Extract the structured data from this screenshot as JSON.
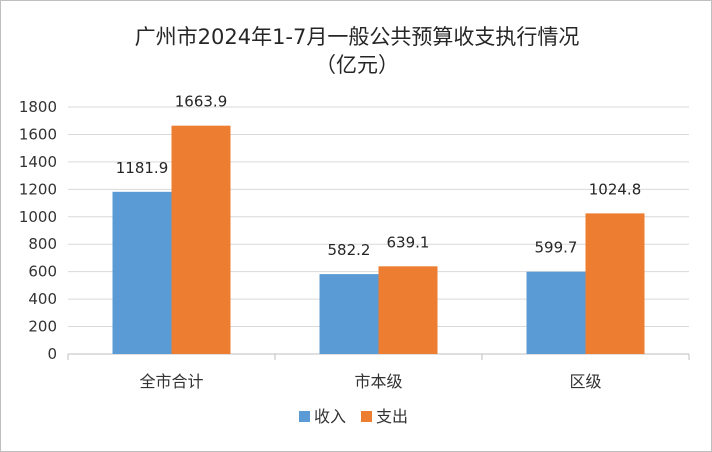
{
  "chart_data": {
    "type": "bar",
    "title": "广州市2024年1-7月一般公共预算收支执行情况",
    "subtitle": "（亿元）",
    "categories": [
      "全市合计",
      "市本级",
      "区级"
    ],
    "series": [
      {
        "name": "收入",
        "values": [
          1181.9,
          582.2,
          599.7
        ],
        "labels": [
          "1181.9",
          "582.2",
          "599.7"
        ],
        "color": "#5b9bd5"
      },
      {
        "name": "支出",
        "values": [
          1663.9,
          639.1,
          1024.8
        ],
        "labels": [
          "1663.9",
          "639.1",
          "1024.8"
        ],
        "color": "#ed7d31"
      }
    ],
    "ylim": [
      0,
      1800
    ],
    "yticks": [
      "0",
      "200",
      "400",
      "600",
      "800",
      "1000",
      "1200",
      "1400",
      "1600",
      "1800"
    ],
    "grid": true,
    "legend_position": "bottom"
  }
}
